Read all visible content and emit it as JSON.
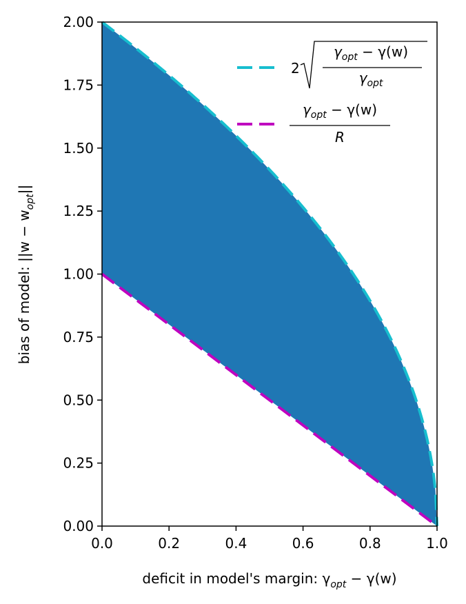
{
  "chart_data": {
    "type": "area",
    "title": "",
    "xlabel": "deficit in model's margin: γ",
    "xlabel_sub1": "opt",
    "xlabel_rest": " − γ(w)",
    "ylabel": "bias of model: ||w − w",
    "ylabel_sub": "opt",
    "ylabel_end": "||",
    "xlim": [
      0,
      1
    ],
    "ylim": [
      0,
      2
    ],
    "xticks": [
      0.0,
      0.2,
      0.4,
      0.6,
      0.8,
      1.0
    ],
    "xtick_labels": [
      "0.0",
      "0.2",
      "0.4",
      "0.6",
      "0.8",
      "1.0"
    ],
    "yticks": [
      0.0,
      0.25,
      0.5,
      0.75,
      1.0,
      1.25,
      1.5,
      1.75,
      2.0
    ],
    "ytick_labels": [
      "0.00",
      "0.25",
      "0.50",
      "0.75",
      "1.00",
      "1.25",
      "1.50",
      "1.75",
      "2.00"
    ],
    "fill": {
      "color": "#1f77b4",
      "lower_curve": "R=1 line: y = 1 - x",
      "upper_curve": "y = 2*sqrt(1 - x)"
    },
    "series": [
      {
        "name": "2√((γopt − γ(w))/γopt)",
        "color": "#17becf",
        "style": "dashed",
        "x": [
          0.0,
          0.1,
          0.2,
          0.3,
          0.4,
          0.5,
          0.6,
          0.7,
          0.8,
          0.9,
          0.95,
          0.99,
          1.0
        ],
        "y": [
          2.0,
          1.897,
          1.789,
          1.673,
          1.549,
          1.414,
          1.265,
          1.095,
          0.894,
          0.632,
          0.447,
          0.2,
          0.0
        ]
      },
      {
        "name": "(γopt − γ(w))/R",
        "color": "#bf00bf",
        "style": "dashed",
        "x": [
          0.0,
          1.0
        ],
        "y": [
          1.0,
          0.0
        ]
      }
    ],
    "legend": {
      "position": "top-right",
      "entry1": {
        "coef": "2",
        "num_main": "γ",
        "num_sub": "opt",
        "num_rest": " − γ(w)",
        "den_main": "γ",
        "den_sub": "opt"
      },
      "entry2": {
        "num_main": "γ",
        "num_sub": "opt",
        "num_rest": " − γ(w)",
        "den": "R"
      }
    }
  }
}
